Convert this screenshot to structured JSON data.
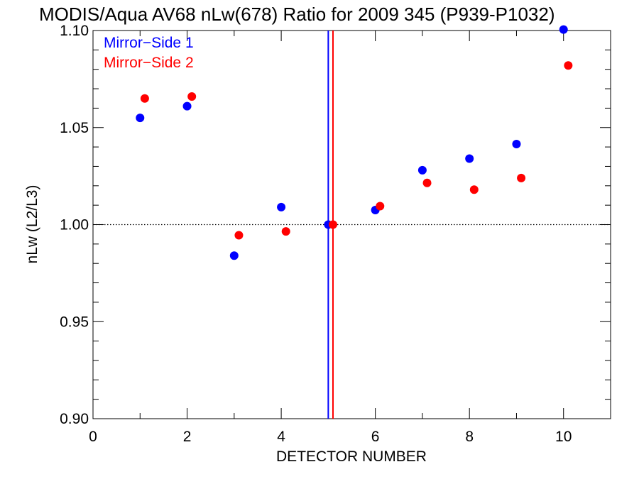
{
  "chart_data": {
    "type": "scatter",
    "title": "MODIS/Aqua AV68 nLw(678) Ratio for 2009 345 (P939-P1032)",
    "xlabel": "DETECTOR NUMBER",
    "ylabel": "nLw (L2/L3)",
    "xlim": [
      0,
      11
    ],
    "ylim": [
      0.9,
      1.1
    ],
    "x_ticks": [
      0,
      2,
      4,
      6,
      8,
      10
    ],
    "x_tick_labels": [
      "0",
      "2",
      "4",
      "6",
      "8",
      "10"
    ],
    "y_ticks": [
      0.9,
      0.95,
      1.0,
      1.05,
      1.1
    ],
    "y_tick_labels": [
      "0.90",
      "0.95",
      "1.00",
      "1.05",
      "1.10"
    ],
    "reference_line": {
      "y": 1.0,
      "style": "dotted",
      "color": "#000000"
    },
    "legend_placement": "top-left",
    "series": [
      {
        "name": "Mirror−Side 1",
        "color": "#0000ff",
        "x": [
          1,
          2,
          3,
          4,
          5,
          6,
          7,
          8,
          9,
          10
        ],
        "y": [
          1.055,
          1.061,
          0.984,
          1.009,
          1.0,
          1.0075,
          1.028,
          1.034,
          1.0415,
          1.1005
        ],
        "vertical_line_x": 5.0
      },
      {
        "name": "Mirror−Side 2",
        "color": "#ff0000",
        "x": [
          1.1,
          2.1,
          3.1,
          4.1,
          5.1,
          6.1,
          7.1,
          8.1,
          9.1,
          10.1
        ],
        "y": [
          1.065,
          1.066,
          0.9945,
          0.9965,
          1.0,
          1.0095,
          1.0215,
          1.018,
          1.024,
          1.082
        ],
        "vertical_line_x": 5.1
      }
    ]
  }
}
